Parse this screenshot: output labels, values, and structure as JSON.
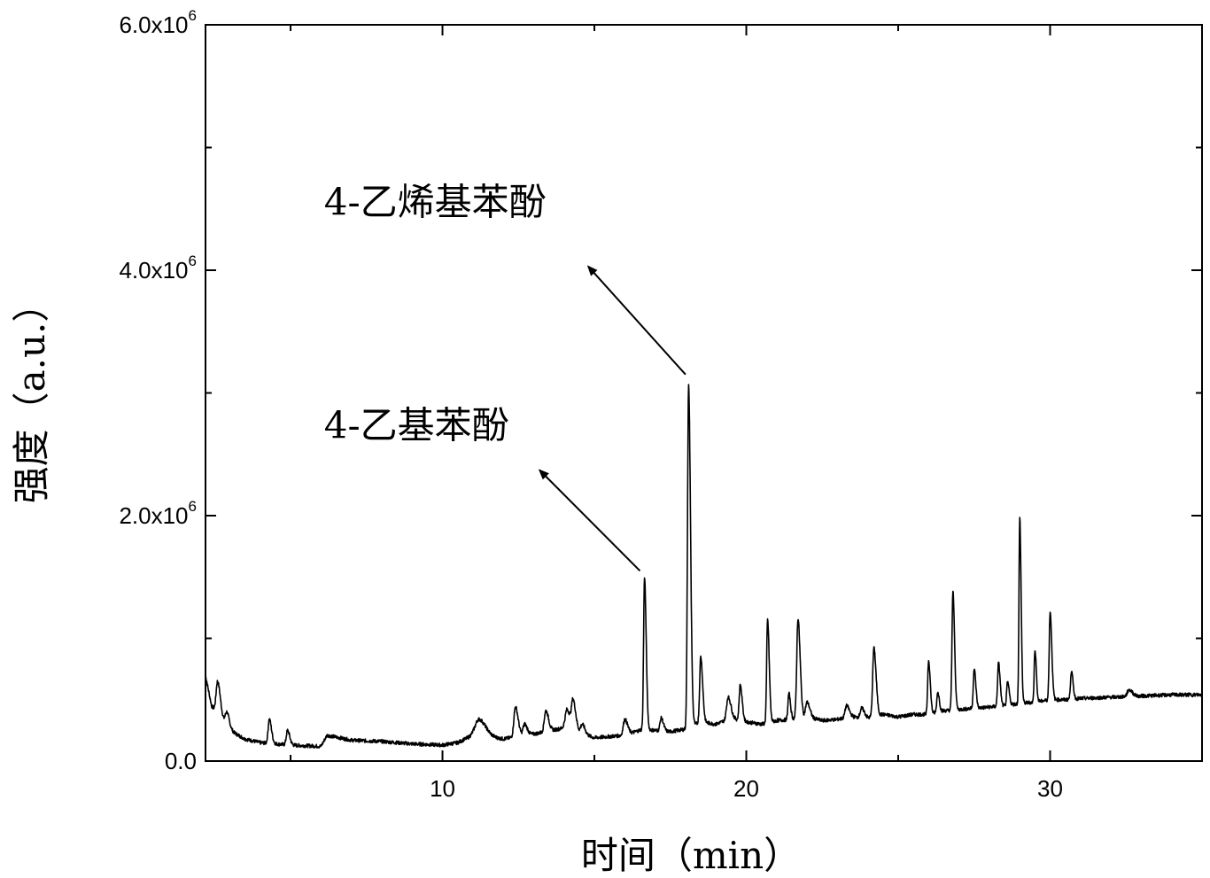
{
  "chart_data": {
    "type": "line",
    "xlabel": "时间（min）",
    "ylabel": "强度（a.u.）",
    "xlim": [
      2.2,
      35
    ],
    "ylim": [
      0,
      6000000
    ],
    "x_ticks": [
      {
        "value": 10,
        "label": "10"
      },
      {
        "value": 20,
        "label": "20"
      },
      {
        "value": 30,
        "label": "30"
      }
    ],
    "x_minor_ticks": [
      5,
      15,
      25,
      35
    ],
    "y_ticks": [
      {
        "value": 0,
        "mantissa": "0.0",
        "exp": ""
      },
      {
        "value": 2000000,
        "mantissa": "2.0x10",
        "exp": "6"
      },
      {
        "value": 4000000,
        "mantissa": "4.0x10",
        "exp": "6"
      },
      {
        "value": 6000000,
        "mantissa": "6.0x10",
        "exp": "6"
      }
    ],
    "y_minor_ticks": [
      1000000,
      3000000,
      5000000
    ],
    "grid": false,
    "line_color": "#000000",
    "baseline": [
      [
        2.2,
        700000
      ],
      [
        2.4,
        450000
      ],
      [
        2.6,
        380000
      ],
      [
        3.0,
        250000
      ],
      [
        3.5,
        180000
      ],
      [
        4.0,
        150000
      ],
      [
        5.0,
        130000
      ],
      [
        6.0,
        120000
      ],
      [
        6.2,
        210000
      ],
      [
        7.0,
        170000
      ],
      [
        8.0,
        160000
      ],
      [
        9.0,
        140000
      ],
      [
        10.0,
        130000
      ],
      [
        10.5,
        150000
      ],
      [
        11.0,
        210000
      ],
      [
        11.5,
        200000
      ],
      [
        12.0,
        180000
      ],
      [
        13.0,
        220000
      ],
      [
        14.0,
        270000
      ],
      [
        15.0,
        190000
      ],
      [
        16.0,
        210000
      ],
      [
        16.6,
        260000
      ],
      [
        17.0,
        250000
      ],
      [
        17.5,
        240000
      ],
      [
        18.0,
        260000
      ],
      [
        18.5,
        320000
      ],
      [
        19.0,
        300000
      ],
      [
        19.5,
        350000
      ],
      [
        20.0,
        320000
      ],
      [
        20.5,
        300000
      ],
      [
        21.0,
        330000
      ],
      [
        21.5,
        340000
      ],
      [
        22.0,
        360000
      ],
      [
        22.5,
        330000
      ],
      [
        23.0,
        340000
      ],
      [
        23.5,
        360000
      ],
      [
        24.0,
        350000
      ],
      [
        24.5,
        380000
      ],
      [
        25.0,
        360000
      ],
      [
        25.5,
        380000
      ],
      [
        26.0,
        380000
      ],
      [
        26.5,
        410000
      ],
      [
        27.0,
        420000
      ],
      [
        27.5,
        430000
      ],
      [
        28.0,
        440000
      ],
      [
        28.5,
        450000
      ],
      [
        29.0,
        470000
      ],
      [
        29.5,
        480000
      ],
      [
        30.0,
        500000
      ],
      [
        30.5,
        500000
      ],
      [
        31.0,
        510000
      ],
      [
        32.0,
        520000
      ],
      [
        33.0,
        530000
      ],
      [
        34.0,
        540000
      ],
      [
        35.0,
        540000
      ]
    ],
    "peaks": [
      [
        2.6,
        650000,
        0.05
      ],
      [
        2.9,
        400000,
        0.05
      ],
      [
        4.3,
        340000,
        0.04
      ],
      [
        4.9,
        250000,
        0.04
      ],
      [
        6.2,
        210000,
        0.05
      ],
      [
        11.2,
        340000,
        0.12
      ],
      [
        12.4,
        440000,
        0.05
      ],
      [
        12.7,
        300000,
        0.05
      ],
      [
        13.4,
        410000,
        0.05
      ],
      [
        14.1,
        420000,
        0.06
      ],
      [
        14.3,
        480000,
        0.05
      ],
      [
        14.6,
        300000,
        0.05
      ],
      [
        16.0,
        340000,
        0.05
      ],
      [
        16.65,
        1500000,
        0.03
      ],
      [
        17.2,
        350000,
        0.04
      ],
      [
        18.1,
        3060000,
        0.035
      ],
      [
        18.5,
        850000,
        0.035
      ],
      [
        19.4,
        520000,
        0.05
      ],
      [
        19.8,
        620000,
        0.035
      ],
      [
        20.7,
        1150000,
        0.03
      ],
      [
        21.4,
        550000,
        0.03
      ],
      [
        21.7,
        1160000,
        0.04
      ],
      [
        22.0,
        480000,
        0.05
      ],
      [
        23.3,
        450000,
        0.05
      ],
      [
        23.8,
        430000,
        0.05
      ],
      [
        24.2,
        920000,
        0.04
      ],
      [
        26.0,
        820000,
        0.03
      ],
      [
        26.3,
        560000,
        0.03
      ],
      [
        26.8,
        1380000,
        0.03
      ],
      [
        27.5,
        750000,
        0.03
      ],
      [
        28.3,
        800000,
        0.03
      ],
      [
        28.6,
        640000,
        0.03
      ],
      [
        29.0,
        1980000,
        0.025
      ],
      [
        29.5,
        910000,
        0.025
      ],
      [
        30.0,
        1220000,
        0.03
      ],
      [
        30.7,
        730000,
        0.03
      ],
      [
        32.6,
        580000,
        0.06
      ]
    ],
    "annotations": [
      {
        "text": "4-乙烯基苯酚",
        "text_x": 6.1,
        "text_y": 4450000,
        "arrow_from": [
          18.0,
          3150000
        ],
        "arrow_to": [
          14.8,
          4030000
        ]
      },
      {
        "text": "4-乙基苯酚",
        "text_x": 6.1,
        "text_y": 2630000,
        "arrow_from": [
          16.5,
          1550000
        ],
        "arrow_to": [
          13.2,
          2370000
        ]
      }
    ]
  }
}
